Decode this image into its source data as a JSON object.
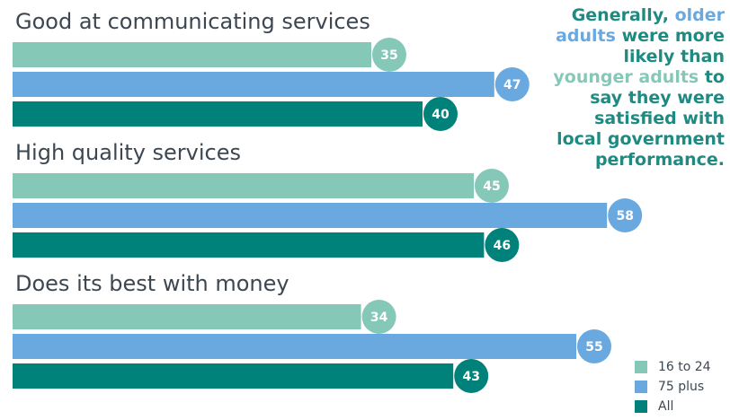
{
  "chart_data": {
    "type": "bar",
    "orientation": "horizontal",
    "categories": [
      "Good at communicating services",
      "High quality services",
      "Does its best with money"
    ],
    "series": [
      {
        "name": "16 to 24",
        "color": "#86c8b8",
        "values": [
          35,
          45,
          34
        ]
      },
      {
        "name": "75 plus",
        "color": "#6aa9e0",
        "values": [
          47,
          58,
          55
        ]
      },
      {
        "name": "All",
        "color": "#00827a",
        "values": [
          40,
          46,
          43
        ]
      }
    ],
    "xlim": [
      0,
      60
    ],
    "grid": false,
    "legend_position": "bottom-right",
    "data_labels": true
  },
  "annotation": {
    "parts": [
      {
        "text": "Generally, ",
        "color": "#1f8a82"
      },
      {
        "text": "older adults",
        "color": "#6aa9e0"
      },
      {
        "text": " were more likely than ",
        "color": "#1f8a82"
      },
      {
        "text": "younger adults",
        "color": "#86c8b8"
      },
      {
        "text": " to say they were satisfied with local government performance.",
        "color": "#1f8a82"
      }
    ]
  },
  "legend": {
    "items": [
      {
        "label": "16 to 24",
        "color": "#86c8b8"
      },
      {
        "label": "75 plus",
        "color": "#6aa9e0"
      },
      {
        "label": "All",
        "color": "#00827a"
      }
    ]
  }
}
